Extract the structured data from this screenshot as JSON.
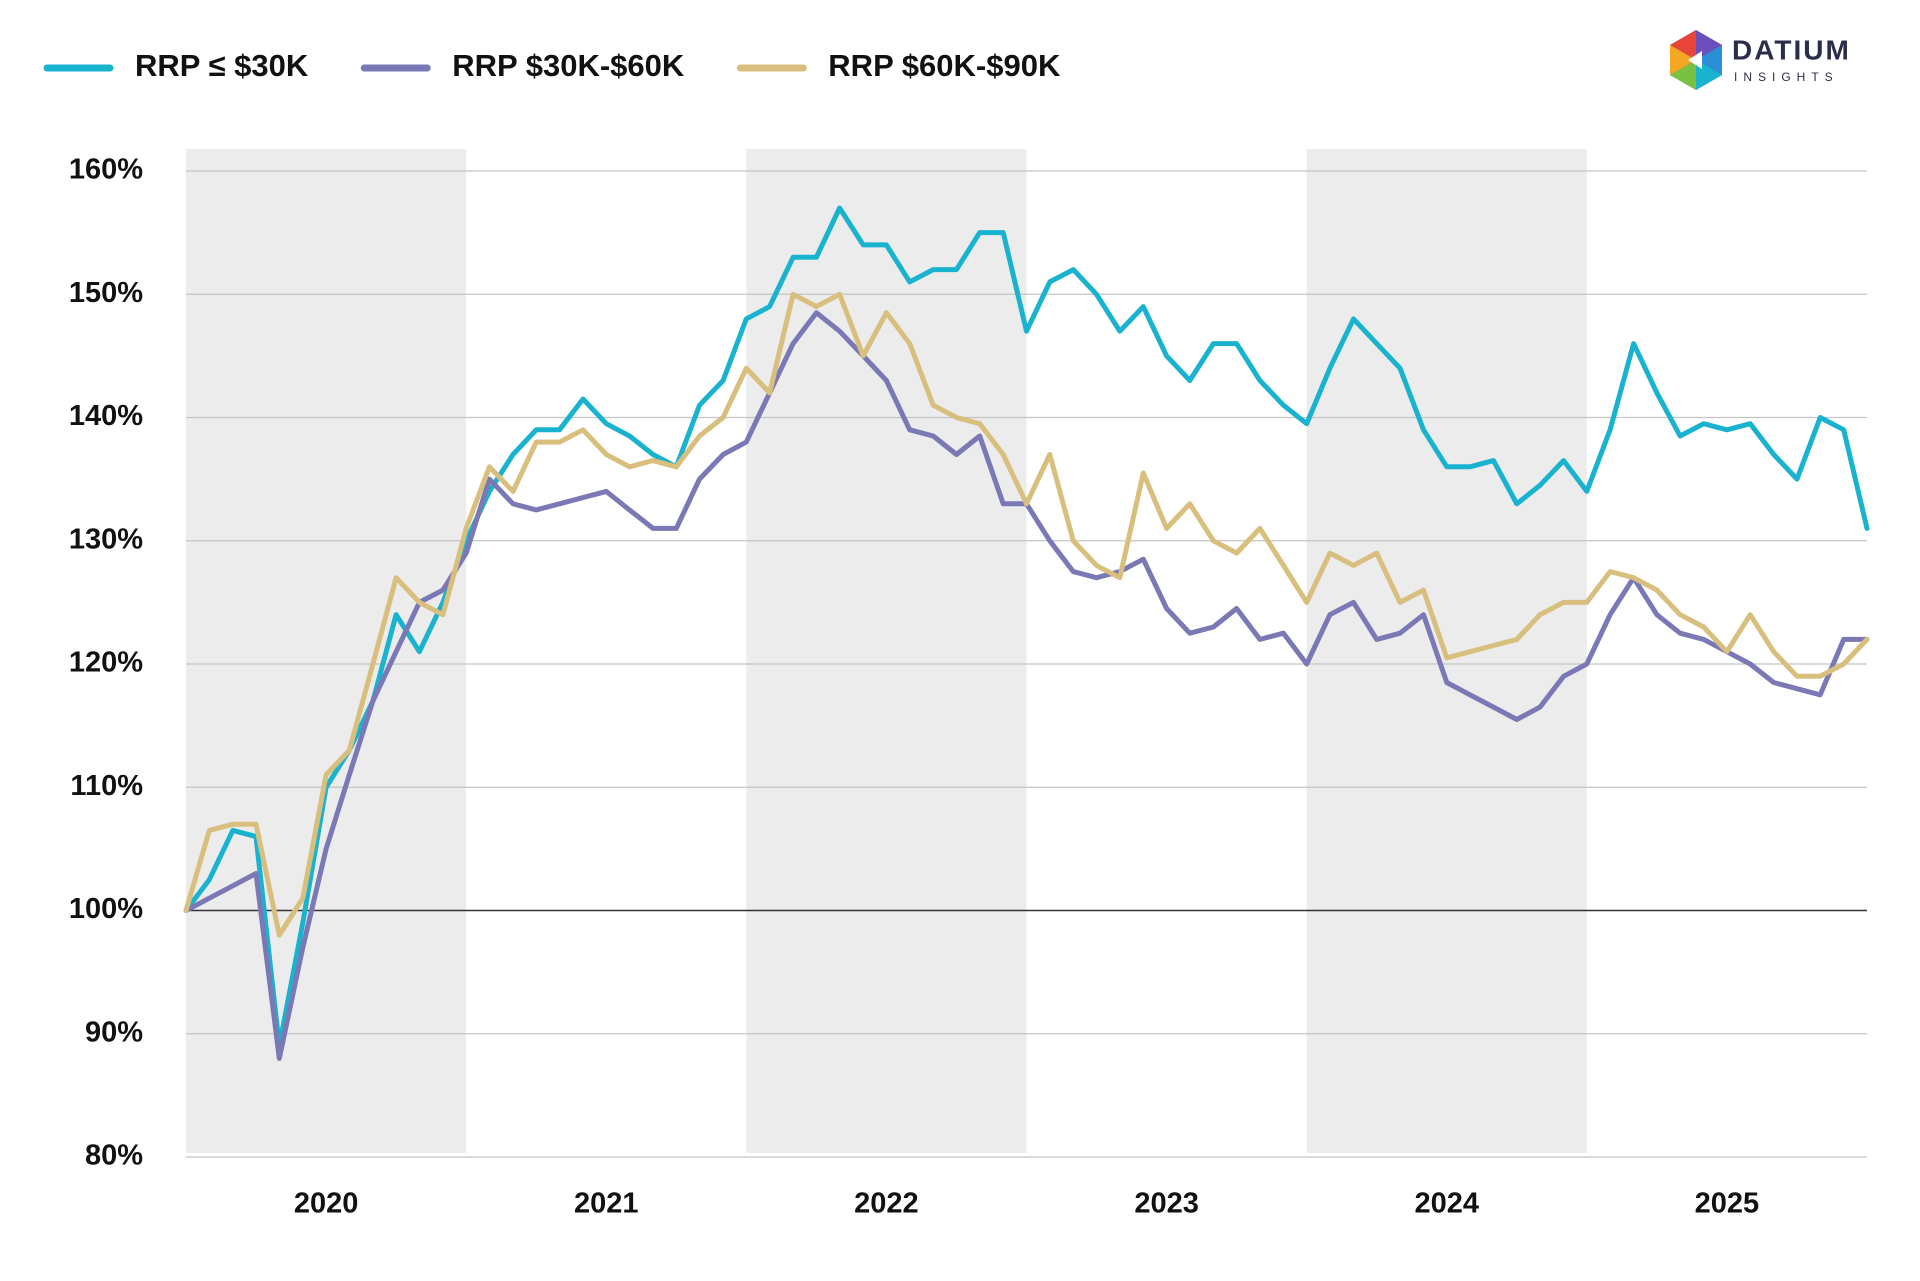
{
  "chart_data": {
    "type": "line",
    "logo": {
      "name": "DATIUM",
      "tagline": "INSIGHTS"
    },
    "x": [
      2020,
      2020.083,
      2020.167,
      2020.25,
      2020.333,
      2020.417,
      2020.5,
      2020.583,
      2020.667,
      2020.75,
      2020.833,
      2020.917,
      2021,
      2021.083,
      2021.167,
      2021.25,
      2021.333,
      2021.417,
      2021.5,
      2021.583,
      2021.667,
      2021.75,
      2021.833,
      2021.917,
      2022,
      2022.083,
      2022.167,
      2022.25,
      2022.333,
      2022.417,
      2022.5,
      2022.583,
      2022.667,
      2022.75,
      2022.833,
      2022.917,
      2023,
      2023.083,
      2023.167,
      2023.25,
      2023.333,
      2023.417,
      2023.5,
      2023.583,
      2023.667,
      2023.75,
      2023.833,
      2023.917,
      2024,
      2024.083,
      2024.167,
      2024.25,
      2024.333,
      2024.417,
      2024.5,
      2024.583,
      2024.667,
      2024.75,
      2024.833,
      2024.917,
      2025,
      2025.083,
      2025.167,
      2025.25,
      2025.333,
      2025.417,
      2025.5,
      2025.583,
      2025.667,
      2025.75,
      2025.833,
      2025.917,
      2026
    ],
    "series": [
      {
        "name": "RRP ≤ $30K",
        "color": "#1ab3cf",
        "values": [
          100,
          102.5,
          106.5,
          106,
          89,
          99,
          110,
          113,
          117,
          124,
          121,
          125,
          130,
          134,
          137,
          139,
          139,
          141.5,
          139.5,
          138.5,
          137,
          136,
          141,
          143,
          148,
          149,
          153,
          153,
          157,
          154,
          154,
          151,
          152,
          152,
          155,
          155,
          147,
          151,
          152,
          150,
          147,
          149,
          145,
          143,
          146,
          146,
          143,
          141,
          139.5,
          144,
          148,
          146,
          144,
          139,
          136,
          136,
          136.5,
          133,
          134.5,
          136.5,
          134,
          139,
          146,
          142,
          138.5,
          139.5,
          139,
          139.5,
          137,
          135,
          140,
          139,
          131
        ]
      },
      {
        "name": "RRP $30K-$60K",
        "color": "#7a78b5",
        "values": [
          100,
          101,
          102,
          103,
          88,
          97,
          105,
          111,
          117,
          121,
          125,
          126,
          129,
          135,
          133,
          132.5,
          133,
          133.5,
          134,
          132.5,
          131,
          131,
          135,
          137,
          138,
          142,
          146,
          148.5,
          147,
          145,
          143,
          139,
          138.5,
          137,
          138.5,
          133,
          133,
          130,
          127.5,
          127,
          127.5,
          128.5,
          124.5,
          122.5,
          123,
          124.5,
          122,
          122.5,
          120,
          124,
          125,
          122,
          122.5,
          124,
          118.5,
          117.5,
          116.5,
          115.5,
          116.5,
          119,
          120,
          124,
          127,
          124,
          122.5,
          122,
          121,
          120,
          118.5,
          118,
          117.5,
          122,
          122
        ]
      },
      {
        "name": "RRP $60K-$90K",
        "color": "#d9bf7e",
        "values": [
          100,
          106.5,
          107,
          107,
          98,
          101,
          111,
          113,
          120,
          127,
          125,
          124,
          131,
          136,
          134,
          138,
          138,
          139,
          137,
          136,
          136.5,
          136,
          138.5,
          140,
          144,
          142,
          150,
          149,
          150,
          145,
          148.5,
          146,
          141,
          140,
          139.5,
          137,
          133,
          137,
          130,
          128,
          127,
          135.5,
          131,
          133,
          130,
          129,
          131,
          128,
          125,
          129,
          128,
          129,
          125,
          126,
          120.5,
          121,
          121.5,
          122,
          124,
          125,
          125,
          127.5,
          127,
          126,
          124,
          123,
          121,
          124,
          121,
          119,
          119,
          120,
          122
        ]
      }
    ],
    "xlim": [
      2020,
      2026
    ],
    "xticks": [
      {
        "value": 2020.5,
        "label": "2020"
      },
      {
        "value": 2021.5,
        "label": "2021"
      },
      {
        "value": 2022.5,
        "label": "2022"
      },
      {
        "value": 2023.5,
        "label": "2023"
      },
      {
        "value": 2024.5,
        "label": "2024"
      },
      {
        "value": 2025.5,
        "label": "2025"
      }
    ],
    "ylim": [
      80,
      160
    ],
    "yticks": [
      {
        "value": 80,
        "label": "80%"
      },
      {
        "value": 90,
        "label": "90%"
      },
      {
        "value": 100,
        "label": "100%"
      },
      {
        "value": 110,
        "label": "110%"
      },
      {
        "value": 120,
        "label": "120%"
      },
      {
        "value": 130,
        "label": "130%"
      },
      {
        "value": 140,
        "label": "140%"
      },
      {
        "value": 150,
        "label": "150%"
      },
      {
        "value": 160,
        "label": "160%"
      }
    ],
    "baseline": 100,
    "grid": true,
    "shade_alternate_years": true,
    "legend": "top-left"
  }
}
